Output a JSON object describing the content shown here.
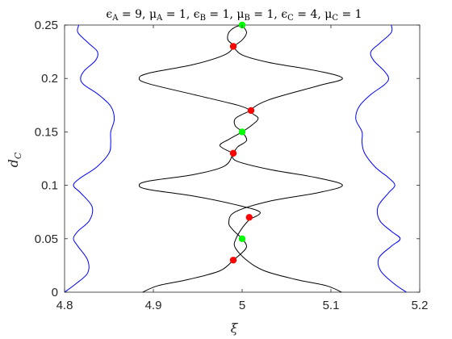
{
  "chart_data": {
    "type": "line",
    "title": "ϵA = 9, μA = 1, ϵB = 1, μB = 1, ϵC = 4, μC = 1",
    "title_parts": [
      {
        "t": "ϵ"
      },
      {
        "t": "A",
        "sub": true
      },
      {
        "t": " = 9, "
      },
      {
        "t": "μ"
      },
      {
        "t": "A",
        "sub": true
      },
      {
        "t": " = 1, "
      },
      {
        "t": "ϵ"
      },
      {
        "t": "B",
        "sub": true
      },
      {
        "t": " = 1, "
      },
      {
        "t": "μ"
      },
      {
        "t": "B",
        "sub": true
      },
      {
        "t": " = 1, "
      },
      {
        "t": "ϵ"
      },
      {
        "t": "C",
        "sub": true
      },
      {
        "t": " = 4, "
      },
      {
        "t": "μ"
      },
      {
        "t": "C",
        "sub": true
      },
      {
        "t": " = 1"
      }
    ],
    "xlabel": "ξ",
    "ylabel": "d",
    "ylabel_sub": "C",
    "xlim": [
      4.8,
      5.2
    ],
    "ylim": [
      0,
      0.25
    ],
    "xticks": [
      4.8,
      4.9,
      5.0,
      5.1,
      5.2
    ],
    "xtick_labels": [
      "4.8",
      "4.9",
      "5",
      "5.1",
      "5.2"
    ],
    "yticks": [
      0,
      0.05,
      0.1,
      0.15,
      0.2,
      0.25
    ],
    "ytick_labels": [
      "0",
      "0.05",
      "0.1",
      "0.15",
      "0.2",
      "0.25"
    ],
    "grid": false,
    "colors": {
      "blue_curves": "#0000ff",
      "black_curves": "#000000",
      "red_points": "#ff0000",
      "green_points": "#00ff00"
    },
    "series": [
      {
        "color": "#0000ff",
        "points": [
          [
            4.8,
            0.0
          ],
          [
            4.813,
            0.008
          ],
          [
            4.826,
            0.018
          ],
          [
            4.826,
            0.03
          ],
          [
            4.815,
            0.043
          ],
          [
            4.81,
            0.05
          ],
          [
            4.815,
            0.057
          ],
          [
            4.828,
            0.067
          ],
          [
            4.831,
            0.08
          ],
          [
            4.818,
            0.093
          ],
          [
            4.81,
            0.1
          ],
          [
            4.818,
            0.107
          ],
          [
            4.836,
            0.117
          ],
          [
            4.85,
            0.13
          ],
          [
            4.852,
            0.14
          ],
          [
            4.852,
            0.15
          ],
          [
            4.856,
            0.162
          ],
          [
            4.852,
            0.174
          ],
          [
            4.838,
            0.185
          ],
          [
            4.822,
            0.194
          ],
          [
            4.818,
            0.2
          ],
          [
            4.822,
            0.207
          ],
          [
            4.835,
            0.217
          ],
          [
            4.837,
            0.225
          ],
          [
            4.827,
            0.233
          ],
          [
            4.815,
            0.243
          ],
          [
            4.816,
            0.25
          ]
        ]
      },
      {
        "color": "#0000ff",
        "points": [
          [
            5.185,
            0.0
          ],
          [
            5.171,
            0.008
          ],
          [
            5.156,
            0.02
          ],
          [
            5.154,
            0.032
          ],
          [
            5.168,
            0.043
          ],
          [
            5.178,
            0.05
          ],
          [
            5.168,
            0.057
          ],
          [
            5.155,
            0.067
          ],
          [
            5.153,
            0.08
          ],
          [
            5.165,
            0.093
          ],
          [
            5.172,
            0.1
          ],
          [
            5.165,
            0.107
          ],
          [
            5.15,
            0.117
          ],
          [
            5.138,
            0.13
          ],
          [
            5.135,
            0.14
          ],
          [
            5.135,
            0.15
          ],
          [
            5.128,
            0.162
          ],
          [
            5.132,
            0.174
          ],
          [
            5.145,
            0.185
          ],
          [
            5.16,
            0.194
          ],
          [
            5.165,
            0.2
          ],
          [
            5.16,
            0.207
          ],
          [
            5.148,
            0.217
          ],
          [
            5.145,
            0.225
          ],
          [
            5.155,
            0.233
          ],
          [
            5.168,
            0.243
          ],
          [
            5.168,
            0.25
          ]
        ]
      },
      {
        "color": "#000000",
        "points": [
          [
            4.888,
            0.0
          ],
          [
            4.905,
            0.006
          ],
          [
            4.94,
            0.012
          ],
          [
            4.975,
            0.02
          ],
          [
            4.99,
            0.03
          ]
        ]
      },
      {
        "color": "#000000",
        "points": [
          [
            5.112,
            0.0
          ],
          [
            5.095,
            0.006
          ],
          [
            5.06,
            0.012
          ],
          [
            5.025,
            0.02
          ],
          [
            5.005,
            0.03
          ],
          [
            4.992,
            0.042
          ],
          [
            4.993,
            0.05
          ],
          [
            5.0,
            0.06
          ],
          [
            5.008,
            0.068
          ]
        ]
      },
      {
        "color": "#000000",
        "points": [
          [
            4.99,
            0.03
          ],
          [
            5.0,
            0.037
          ],
          [
            5.005,
            0.043
          ],
          [
            5.0,
            0.05
          ],
          [
            4.99,
            0.058
          ],
          [
            4.985,
            0.065
          ],
          [
            4.992,
            0.075
          ],
          [
            5.03,
            0.085
          ],
          [
            5.085,
            0.093
          ],
          [
            5.113,
            0.1
          ],
          [
            5.085,
            0.107
          ],
          [
            5.03,
            0.115
          ],
          [
            4.993,
            0.123
          ],
          [
            4.99,
            0.13
          ]
        ]
      },
      {
        "color": "#000000",
        "points": [
          [
            5.008,
            0.068
          ],
          [
            5.02,
            0.075
          ],
          [
            4.992,
            0.082
          ],
          [
            4.945,
            0.09
          ],
          [
            4.895,
            0.096
          ],
          [
            4.884,
            0.1
          ],
          [
            4.895,
            0.104
          ],
          [
            4.945,
            0.11
          ],
          [
            4.98,
            0.118
          ],
          [
            4.99,
            0.13
          ],
          [
            4.995,
            0.136
          ],
          [
            5.005,
            0.142
          ],
          [
            5.0,
            0.15
          ],
          [
            4.992,
            0.156
          ],
          [
            4.993,
            0.163
          ],
          [
            5.01,
            0.17
          ]
        ]
      },
      {
        "color": "#000000",
        "points": [
          [
            4.99,
            0.13
          ],
          [
            4.975,
            0.137
          ],
          [
            4.985,
            0.143
          ],
          [
            5.0,
            0.15
          ],
          [
            5.012,
            0.157
          ],
          [
            5.018,
            0.163
          ],
          [
            5.01,
            0.17
          ],
          [
            5.03,
            0.18
          ],
          [
            5.085,
            0.193
          ],
          [
            5.113,
            0.2
          ],
          [
            5.085,
            0.207
          ],
          [
            5.03,
            0.215
          ],
          [
            5.0,
            0.222
          ],
          [
            4.99,
            0.23
          ]
        ]
      },
      {
        "color": "#000000",
        "points": [
          [
            5.01,
            0.17
          ],
          [
            4.995,
            0.175
          ],
          [
            4.945,
            0.185
          ],
          [
            4.895,
            0.195
          ],
          [
            4.884,
            0.2
          ],
          [
            4.895,
            0.205
          ],
          [
            4.945,
            0.213
          ],
          [
            4.98,
            0.222
          ],
          [
            4.99,
            0.23
          ],
          [
            4.984,
            0.236
          ],
          [
            4.985,
            0.243
          ],
          [
            4.992,
            0.248
          ],
          [
            5.0,
            0.25
          ]
        ]
      },
      {
        "color": "#000000",
        "points": [
          [
            4.99,
            0.23
          ],
          [
            5.0,
            0.236
          ],
          [
            5.005,
            0.243
          ],
          [
            5.0,
            0.25
          ]
        ]
      }
    ],
    "red_points": [
      [
        4.99,
        0.03
      ],
      [
        5.008,
        0.07
      ],
      [
        4.99,
        0.13
      ],
      [
        5.01,
        0.17
      ],
      [
        4.99,
        0.23
      ]
    ],
    "green_points": [
      [
        5.0,
        0.05
      ],
      [
        5.0,
        0.15
      ],
      [
        5.0,
        0.25
      ]
    ]
  }
}
